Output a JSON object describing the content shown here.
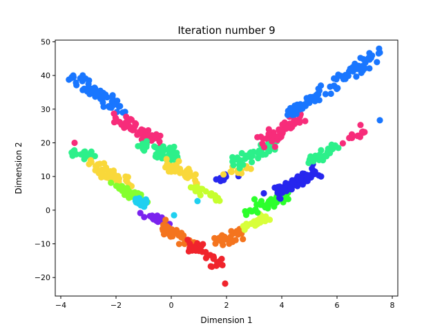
{
  "chart_data": {
    "type": "scatter",
    "title": "Iteration number 9",
    "xlabel": "Dimension 1",
    "ylabel": "Dimension 2",
    "xlim": [
      -4.2,
      8.2
    ],
    "ylim": [
      -25.5,
      50.5
    ],
    "xticks": [
      -4,
      -2,
      0,
      2,
      4,
      6,
      8
    ],
    "yticks": [
      -20,
      -10,
      0,
      10,
      20,
      30,
      40,
      50
    ],
    "grid": false,
    "legend": "none",
    "clusters": [
      {
        "color": "#1976ff",
        "start": [
          -3.5,
          39.5
        ],
        "end": [
          -1.7,
          29.5
        ],
        "n": 60,
        "noise": [
          0.12,
          1.0
        ]
      },
      {
        "color": "#f72c7a",
        "start": [
          -2.0,
          27.5
        ],
        "end": [
          -0.5,
          20.5
        ],
        "n": 55,
        "noise": [
          0.12,
          1.0
        ]
      },
      {
        "color": "#2cf08a",
        "start": [
          -1.2,
          19.5
        ],
        "end": [
          0.2,
          16.0
        ],
        "n": 45,
        "noise": [
          0.12,
          0.9
        ]
      },
      {
        "color": "#f9d83a",
        "start": [
          -0.2,
          14.0
        ],
        "end": [
          1.0,
          9.0
        ],
        "n": 40,
        "noise": [
          0.1,
          0.9
        ]
      },
      {
        "color": "#c6ff2e",
        "start": [
          0.8,
          6.5
        ],
        "end": [
          1.8,
          3.0
        ],
        "n": 20,
        "noise": [
          0.1,
          0.8
        ]
      },
      {
        "color": "#2626ee",
        "start": [
          1.5,
          8.5
        ],
        "end": [
          2.3,
          10.5
        ],
        "n": 10,
        "noise": [
          0.08,
          0.6
        ]
      },
      {
        "color": "#f9d83a",
        "start": [
          1.8,
          11.0
        ],
        "end": [
          2.8,
          12.5
        ],
        "n": 12,
        "noise": [
          0.08,
          0.6
        ]
      },
      {
        "color": "#2cf08a",
        "start": [
          2.3,
          14.0
        ],
        "end": [
          3.8,
          19.5
        ],
        "n": 40,
        "noise": [
          0.12,
          0.9
        ]
      },
      {
        "color": "#f72c7a",
        "start": [
          3.3,
          20.0
        ],
        "end": [
          4.8,
          27.5
        ],
        "n": 55,
        "noise": [
          0.12,
          1.0
        ]
      },
      {
        "color": "#1976ff",
        "start": [
          4.2,
          28.5
        ],
        "end": [
          7.5,
          46.0
        ],
        "n": 75,
        "noise": [
          0.12,
          1.0
        ]
      },
      {
        "color": "#2cf08a",
        "start": [
          -3.6,
          18.0
        ],
        "end": [
          -2.7,
          16.0
        ],
        "n": 18,
        "noise": [
          0.1,
          0.7
        ]
      },
      {
        "color": "#f9d83a",
        "start": [
          -3.0,
          14.0
        ],
        "end": [
          -1.5,
          8.0
        ],
        "n": 45,
        "noise": [
          0.12,
          1.0
        ]
      },
      {
        "color": "#84ff2e",
        "start": [
          -2.0,
          7.0
        ],
        "end": [
          -1.0,
          3.5
        ],
        "n": 30,
        "noise": [
          0.1,
          0.8
        ]
      },
      {
        "color": "#1fd0f0",
        "start": [
          -1.6,
          3.5
        ],
        "end": [
          -0.7,
          1.0
        ],
        "n": 15,
        "noise": [
          0.1,
          0.6
        ]
      },
      {
        "color": "#7a22ee",
        "start": [
          -1.0,
          -1.5
        ],
        "end": [
          -0.1,
          -4.0
        ],
        "n": 22,
        "noise": [
          0.1,
          0.6
        ]
      },
      {
        "color": "#f4741e",
        "start": [
          -0.3,
          -5.5
        ],
        "end": [
          0.9,
          -10.5
        ],
        "n": 40,
        "noise": [
          0.12,
          0.9
        ]
      },
      {
        "color": "#f0242c",
        "start": [
          0.7,
          -10.0
        ],
        "end": [
          1.8,
          -16.5
        ],
        "n": 35,
        "noise": [
          0.12,
          1.0
        ]
      },
      {
        "color": "#f4741e",
        "start": [
          1.6,
          -10.0
        ],
        "end": [
          2.6,
          -6.0
        ],
        "n": 30,
        "noise": [
          0.1,
          0.8
        ]
      },
      {
        "color": "#d8ff3a",
        "start": [
          2.6,
          -5.0
        ],
        "end": [
          3.5,
          -2.0
        ],
        "n": 25,
        "noise": [
          0.1,
          0.7
        ]
      },
      {
        "color": "#2cff2c",
        "start": [
          2.8,
          0.0
        ],
        "end": [
          4.2,
          4.0
        ],
        "n": 45,
        "noise": [
          0.12,
          0.9
        ]
      },
      {
        "color": "#2626ee",
        "start": [
          3.8,
          5.0
        ],
        "end": [
          5.3,
          12.0
        ],
        "n": 55,
        "noise": [
          0.12,
          1.0
        ]
      },
      {
        "color": "#2cf08a",
        "start": [
          5.0,
          14.5
        ],
        "end": [
          6.0,
          18.5
        ],
        "n": 30,
        "noise": [
          0.1,
          0.8
        ]
      },
      {
        "color": "#f72c7a",
        "start": [
          6.2,
          19.5
        ],
        "end": [
          7.0,
          23.5
        ],
        "n": 10,
        "noise": [
          0.08,
          0.7
        ]
      }
    ],
    "outliers": [
      {
        "x": 7.55,
        "y": 46.8,
        "color": "#1976ff"
      },
      {
        "x": 7.55,
        "y": 26.7,
        "color": "#1976ff"
      },
      {
        "x": 6.85,
        "y": 45.2,
        "color": "#1976ff"
      },
      {
        "x": 6.85,
        "y": 25.3,
        "color": "#f72c7a"
      },
      {
        "x": 6.95,
        "y": 23.0,
        "color": "#f72c7a"
      },
      {
        "x": 1.95,
        "y": -21.8,
        "color": "#f0242c"
      },
      {
        "x": -3.5,
        "y": 20.0,
        "color": "#f72c7a"
      },
      {
        "x": -3.55,
        "y": 40.0,
        "color": "#1976ff"
      },
      {
        "x": 0.1,
        "y": 18.8,
        "color": "#2cf08a"
      },
      {
        "x": 0.1,
        "y": -1.5,
        "color": "#1fd0f0"
      },
      {
        "x": 3.35,
        "y": 5.0,
        "color": "#2626ee"
      },
      {
        "x": 0.95,
        "y": 2.7,
        "color": "#1fd0f0"
      }
    ]
  }
}
